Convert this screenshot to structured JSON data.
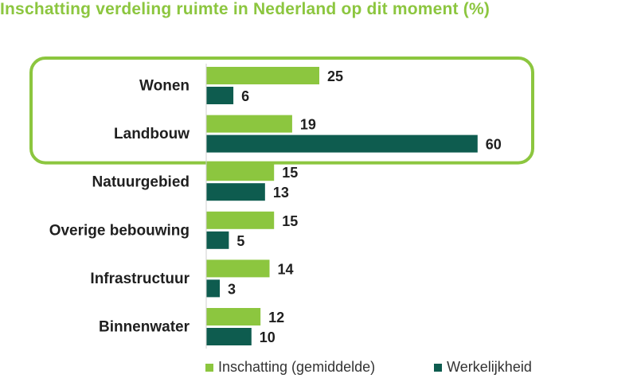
{
  "chart_data": {
    "type": "bar",
    "orientation": "horizontal",
    "title": "Inschatting verdeling ruimte in Nederland op dit moment (%)",
    "categories": [
      "Wonen",
      "Landbouw",
      "Natuurgebied",
      "Overige bebouwing",
      "Infrastructuur",
      "Binnenwater"
    ],
    "series": [
      {
        "name": "Inschatting (gemiddelde)",
        "values": [
          25,
          19,
          15,
          15,
          14,
          12
        ],
        "color": "#8cc63f"
      },
      {
        "name": "Werkelijkheid",
        "values": [
          6,
          60,
          13,
          5,
          3,
          10
        ],
        "color": "#0e5c4f"
      }
    ],
    "highlighted_categories": [
      "Wonen",
      "Landbouw"
    ],
    "highlight_color": "#8cc63f",
    "data_labels": true,
    "grid": false,
    "legend_position": "bottom"
  }
}
